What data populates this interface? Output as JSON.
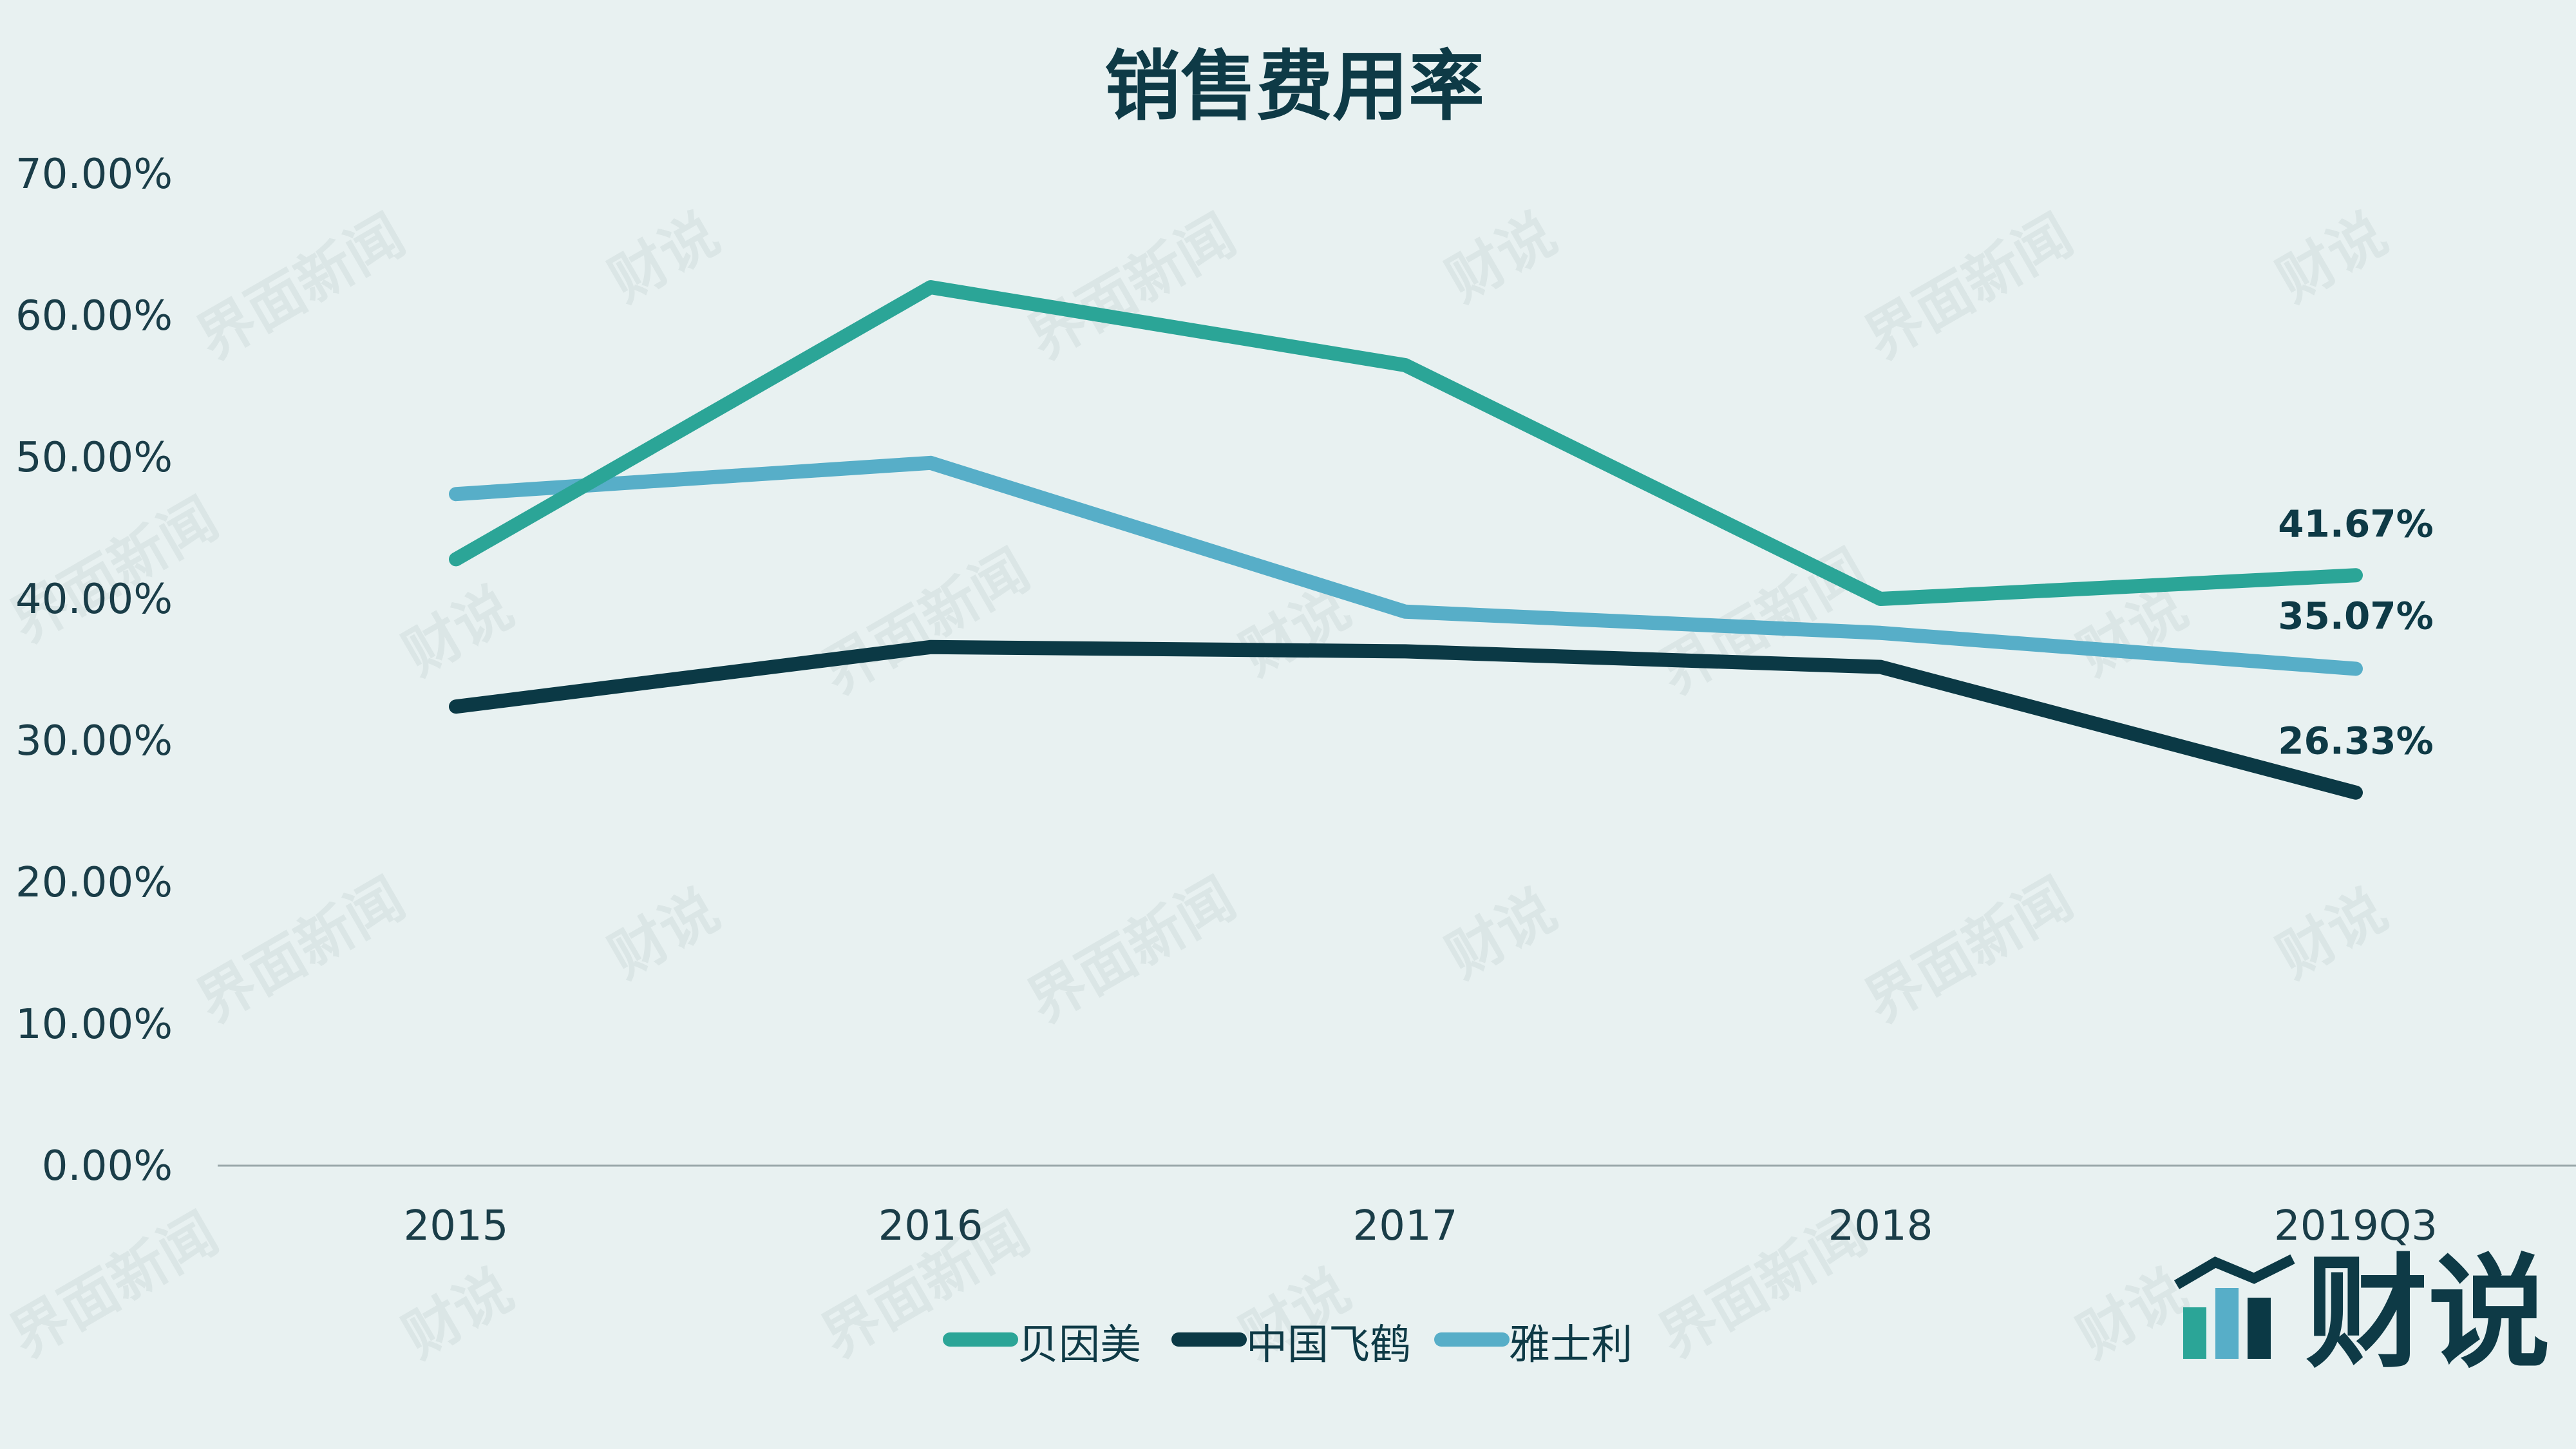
{
  "chart_data": {
    "type": "line",
    "title": "销售费用率",
    "categories": [
      "2015",
      "2016",
      "2017",
      "2018",
      "2019Q3"
    ],
    "ylim": [
      0,
      70
    ],
    "yticks": [
      "0.00%",
      "10.00%",
      "20.00%",
      "30.00%",
      "40.00%",
      "50.00%",
      "60.00%",
      "70.00%"
    ],
    "grid": false,
    "legend_position": "bottom",
    "series": [
      {
        "name": "贝因美",
        "values": [
          42.8,
          62.0,
          56.5,
          40.0,
          41.67
        ],
        "color": "#2ba597",
        "end_label": "41.67%"
      },
      {
        "name": "中国飞鹤",
        "values": [
          32.4,
          36.6,
          36.3,
          35.2,
          26.33
        ],
        "color": "#0b3945",
        "end_label": "26.33%"
      },
      {
        "name": "雅士利",
        "values": [
          47.4,
          49.6,
          39.1,
          37.6,
          35.07
        ],
        "color": "#57aec8",
        "end_label": "35.07%"
      }
    ]
  },
  "watermark": {
    "text1": "界面新闻",
    "text2": "财说"
  },
  "logo": {
    "text": "财说",
    "colors": [
      "#2ba597",
      "#57aec8",
      "#0b3945"
    ]
  }
}
